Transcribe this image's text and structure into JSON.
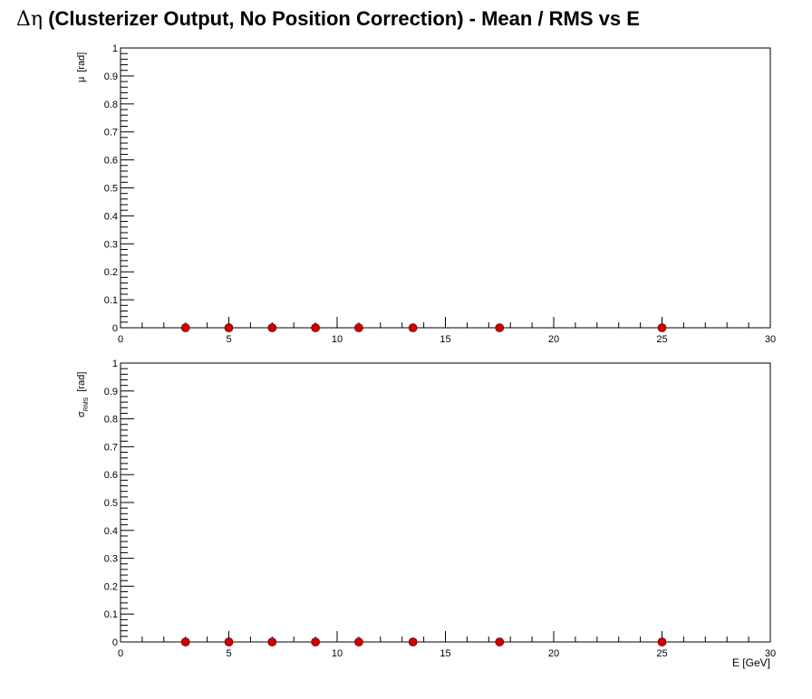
{
  "title": {
    "symbol": "Δη",
    "text": " (Clusterizer Output, No Position Correction)  -  Mean / RMS vs E"
  },
  "chart_data": [
    {
      "type": "scatter",
      "ylabel_main": "μ",
      "ylabel_sub": "",
      "ylabel_unit": "[rad]",
      "xlabel": "",
      "xlim": [
        0,
        30
      ],
      "ylim": [
        0,
        1
      ],
      "x_ticks": [
        "0",
        "5",
        "10",
        "15",
        "20",
        "25",
        "30"
      ],
      "y_ticks": [
        "0",
        "0.1",
        "0.2",
        "0.3",
        "0.4",
        "0.5",
        "0.6",
        "0.7",
        "0.8",
        "0.9",
        "1"
      ],
      "marker_color": "#cc0000",
      "points": [
        {
          "x": 3,
          "y": 0
        },
        {
          "x": 5,
          "y": 0
        },
        {
          "x": 7,
          "y": 0
        },
        {
          "x": 9,
          "y": 0
        },
        {
          "x": 11,
          "y": 0
        },
        {
          "x": 13.5,
          "y": 0
        },
        {
          "x": 17.5,
          "y": 0
        },
        {
          "x": 25,
          "y": 0
        }
      ]
    },
    {
      "type": "scatter",
      "ylabel_main": "σ",
      "ylabel_sub": "RMS",
      "ylabel_unit": "[rad]",
      "xlabel": "E  [GeV]",
      "xlim": [
        0,
        30
      ],
      "ylim": [
        0,
        1
      ],
      "x_ticks": [
        "0",
        "5",
        "10",
        "15",
        "20",
        "25",
        "30"
      ],
      "y_ticks": [
        "0",
        "0.1",
        "0.2",
        "0.3",
        "0.4",
        "0.5",
        "0.6",
        "0.7",
        "0.8",
        "0.9",
        "1"
      ],
      "marker_color": "#cc0000",
      "points": [
        {
          "x": 3,
          "y": 0
        },
        {
          "x": 5,
          "y": 0
        },
        {
          "x": 7,
          "y": 0
        },
        {
          "x": 9,
          "y": 0
        },
        {
          "x": 11,
          "y": 0
        },
        {
          "x": 13.5,
          "y": 0
        },
        {
          "x": 17.5,
          "y": 0
        },
        {
          "x": 25,
          "y": 0
        }
      ]
    }
  ]
}
